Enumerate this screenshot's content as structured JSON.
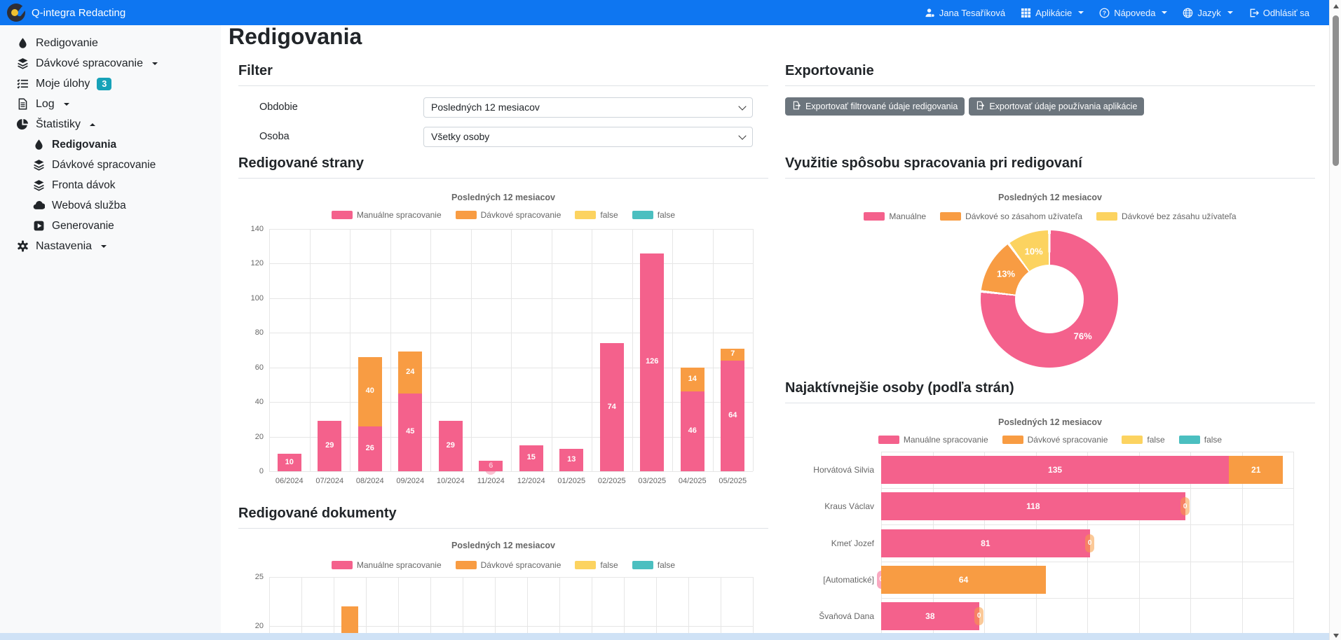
{
  "app": {
    "title": "Q-integra Redacting"
  },
  "navbar": {
    "items": [
      {
        "label": "Jana Tesaříková",
        "icon": "user-gear-icon",
        "slug": "user",
        "caret": false
      },
      {
        "label": "Aplikácie",
        "icon": "apps-icon",
        "slug": "aplikacie",
        "caret": true
      },
      {
        "label": "Nápoveda",
        "icon": "help-icon",
        "slug": "napoveda",
        "caret": true
      },
      {
        "label": "Jazyk",
        "icon": "globe-icon",
        "slug": "jazyk",
        "caret": true
      },
      {
        "label": "Odhlásiť sa",
        "icon": "logout-icon",
        "slug": "odhlasit-sa",
        "caret": false
      }
    ]
  },
  "sidebar": {
    "items": [
      {
        "label": "Redigovanie",
        "icon": "drop-icon",
        "slug": "redigovanie"
      },
      {
        "label": "Dávkové spracovanie",
        "icon": "layers-icon",
        "slug": "davkove-spracovanie",
        "caret": "down"
      },
      {
        "label": "Moje úlohy",
        "icon": "tasks-icon",
        "slug": "moje-ulohy",
        "badge": "3"
      },
      {
        "label": "Log",
        "icon": "log-icon",
        "slug": "log",
        "caret": "down"
      },
      {
        "label": "Štatistiky",
        "icon": "stats-icon",
        "slug": "statistiky",
        "caret": "up",
        "sub": [
          {
            "label": "Redigovania",
            "icon": "drop-icon",
            "slug": "statistiky-redigovania",
            "active": true
          },
          {
            "label": "Dávkové spracovanie",
            "icon": "layers-icon",
            "slug": "statistiky-davkove-spracovanie"
          },
          {
            "label": "Fronta dávok",
            "icon": "layers-icon",
            "slug": "fronta-davok"
          },
          {
            "label": "Webová služba",
            "icon": "cloud-icon",
            "slug": "webova-sluzba"
          },
          {
            "label": "Generovanie",
            "icon": "generate-icon",
            "slug": "generovanie"
          }
        ]
      },
      {
        "label": "Nastavenia",
        "icon": "gear-icon",
        "slug": "nastavenia",
        "caret": "down"
      }
    ]
  },
  "page": {
    "title": "Redigovania"
  },
  "filter": {
    "heading": "Filter",
    "fields": [
      {
        "label": "Obdobie",
        "value": "Posledných 12 mesiacov"
      },
      {
        "label": "Osoba",
        "value": "Všetky osoby"
      }
    ]
  },
  "export": {
    "heading": "Exportovanie",
    "buttons": [
      "Exportovať filtrované údaje redigovania",
      "Exportovať údaje používania aplikácie"
    ]
  },
  "colors": {
    "primary": "#0e76f1",
    "pink": "#f4618c",
    "orange": "#f89c43",
    "yellow": "#fcd360",
    "teal": "#4bbfc0",
    "button": "#6c757d",
    "badge": "#17a2b8"
  },
  "chart_data": [
    {
      "id": "redigovane-strany",
      "type": "bar",
      "stacked": true,
      "title": "Redigované strany",
      "subtitle": "Posledných 12 mesiacov",
      "categories": [
        "06/2024",
        "07/2024",
        "08/2024",
        "09/2024",
        "10/2024",
        "11/2024",
        "12/2024",
        "01/2025",
        "02/2025",
        "03/2025",
        "04/2025",
        "05/2025"
      ],
      "series": [
        {
          "name": "Manuálne spracovanie",
          "color": "#f4618c",
          "values": [
            10,
            29,
            26,
            45,
            29,
            6,
            15,
            13,
            74,
            126,
            46,
            64
          ]
        },
        {
          "name": "Dávkové spracovanie",
          "color": "#f89c43",
          "values": [
            0,
            0,
            40,
            24,
            0,
            0,
            0,
            0,
            0,
            0,
            14,
            7
          ]
        },
        {
          "name": "false",
          "color": "#fcd360",
          "values": [
            0,
            0,
            0,
            0,
            0,
            0,
            0,
            0,
            0,
            0,
            0,
            0
          ]
        },
        {
          "name": "false",
          "color": "#4bbfc0",
          "values": [
            0,
            0,
            0,
            0,
            0,
            0,
            0,
            0,
            0,
            0,
            0,
            0
          ]
        }
      ],
      "ylim": [
        0,
        140
      ],
      "ytick": 20,
      "grid": true,
      "legend_position": "top"
    },
    {
      "id": "vyuzitie-sposobu",
      "type": "pie",
      "donut": true,
      "title": "Využitie spôsobu spracovania pri redigovaní",
      "subtitle": "Posledných 12 mesiacov",
      "labels": [
        "Manuálne",
        "Dávkové so zásahom užívateľa",
        "Dávkové bez zásahu užívateľa"
      ],
      "colors": [
        "#f4618c",
        "#f89c43",
        "#fcd360"
      ],
      "values": [
        76,
        13,
        10
      ],
      "unit": "%",
      "slice_labels": [
        "76%",
        "13%",
        "10%"
      ],
      "legend_position": "top"
    },
    {
      "id": "najaktivnejsie-osoby",
      "type": "bar",
      "horizontal": true,
      "stacked": true,
      "title": "Najaktívnejšie osoby (podľa strán)",
      "subtitle": "Posledných 12 mesiacov",
      "categories": [
        "Horvátová Silvia",
        "Kraus Václav",
        "Kmeť Jozef",
        "[Automatické]",
        "Švaňová Dana"
      ],
      "series": [
        {
          "name": "Manuálne spracovanie",
          "color": "#f4618c",
          "values": [
            135,
            118,
            81,
            0,
            38
          ]
        },
        {
          "name": "Dávkové spracovanie",
          "color": "#f89c43",
          "values": [
            21,
            0,
            0,
            64,
            0
          ]
        },
        {
          "name": "false",
          "color": "#fcd360",
          "values": [
            0,
            0,
            0,
            0,
            0
          ]
        },
        {
          "name": "false",
          "color": "#4bbfc0",
          "values": [
            0,
            0,
            0,
            0,
            0
          ]
        }
      ],
      "xlim": [
        0,
        160
      ],
      "xtick": 20,
      "grid": true,
      "legend_position": "top"
    },
    {
      "id": "redigovane-dokumenty",
      "type": "bar",
      "stacked": true,
      "title": "Redigované dokumenty",
      "subtitle": "Posledných 12 mesiacov",
      "series": [
        {
          "name": "Manuálne spracovanie",
          "color": "#f4618c"
        },
        {
          "name": "Dávkové spracovanie",
          "color": "#f89c43"
        },
        {
          "name": "false",
          "color": "#fcd360"
        },
        {
          "name": "false",
          "color": "#4bbfc0"
        }
      ],
      "yticks_visible": [
        25,
        20
      ],
      "visible_bars": [
        {
          "series_index": 1,
          "slot": 2,
          "value": 22
        }
      ],
      "note": "chart partially cut off at bottom edge of viewport"
    }
  ]
}
